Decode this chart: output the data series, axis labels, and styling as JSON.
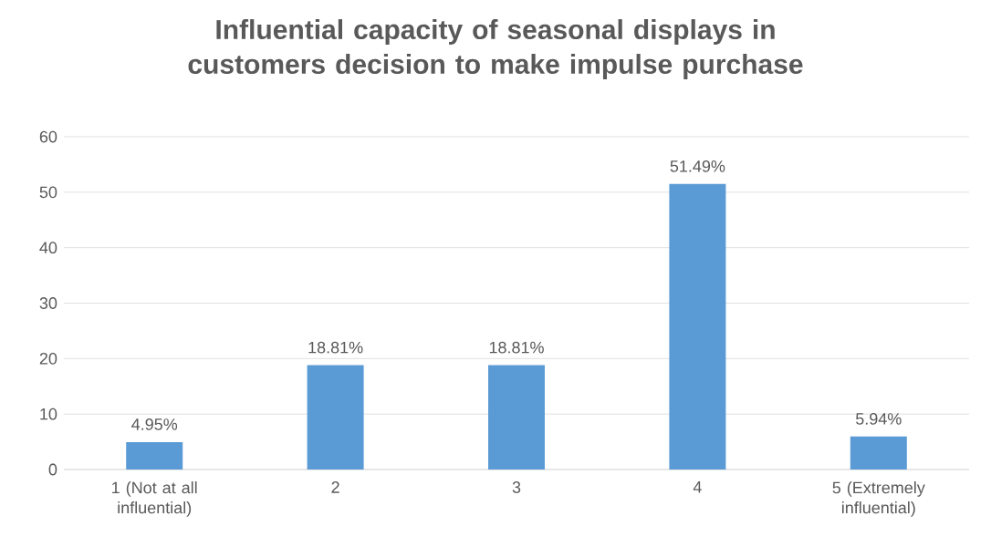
{
  "chart_data": {
    "type": "bar",
    "title": "Influential capacity of seasonal displays in customers decision to make impulse purchase",
    "categories": [
      "1 (Not at all influential)",
      "2",
      "3",
      "4",
      "5 (Extremely influential)"
    ],
    "values": [
      4.95,
      18.81,
      18.81,
      51.49,
      5.94
    ],
    "value_labels": [
      "4.95%",
      "18.81%",
      "18.81%",
      "51.49%",
      "5.94%"
    ],
    "color": "#5b9bd5",
    "ylim": [
      0,
      60
    ],
    "yticks": [
      0,
      10,
      20,
      30,
      40,
      50,
      60
    ],
    "grid": "y"
  }
}
